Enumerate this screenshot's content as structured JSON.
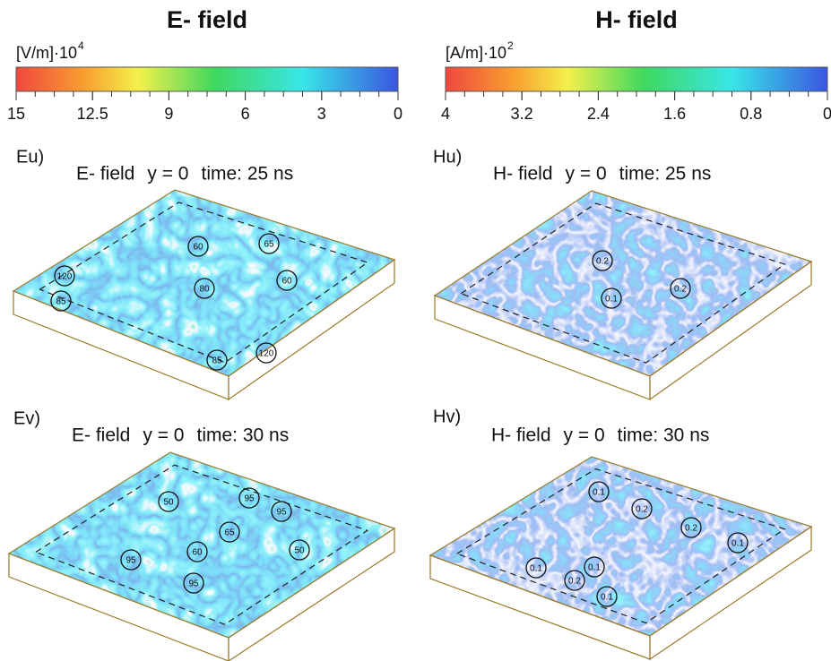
{
  "colorbars": [
    {
      "title": "E- field",
      "unit": "[V/m]·10",
      "unit_exponent": "4",
      "ticks": [
        "15",
        "12.5",
        "9",
        "6",
        "3",
        "0"
      ]
    },
    {
      "title": "H- field",
      "unit": "[A/m]·10",
      "unit_exponent": "2",
      "ticks": [
        "4",
        "3.2",
        "2.4",
        "1.6",
        "0.8",
        "0"
      ]
    }
  ],
  "panels": [
    {
      "label": "Eu)",
      "field": "E- field",
      "plane": "y = 0",
      "time": "time: 25 ns",
      "annotations": [
        "60",
        "65",
        "120",
        "60",
        "80",
        "85",
        "85",
        "120"
      ]
    },
    {
      "label": "Hu)",
      "field": "H- field",
      "plane": "y = 0",
      "time": "time: 25 ns",
      "annotations": [
        "0.2",
        "0.1",
        "0.2"
      ]
    },
    {
      "label": "Ev)",
      "field": "E- field",
      "plane": "y = 0",
      "time": "time: 30 ns",
      "annotations": [
        "50",
        "95",
        "95",
        "65",
        "60",
        "50",
        "95",
        "95"
      ]
    },
    {
      "label": "Hv)",
      "field": "H- field",
      "plane": "y = 0",
      "time": "time: 30 ns",
      "annotations": [
        "0.1",
        "0.2",
        "0.2",
        "0.1",
        "0.1",
        "0.2",
        "0.1",
        "0.1"
      ]
    }
  ]
}
